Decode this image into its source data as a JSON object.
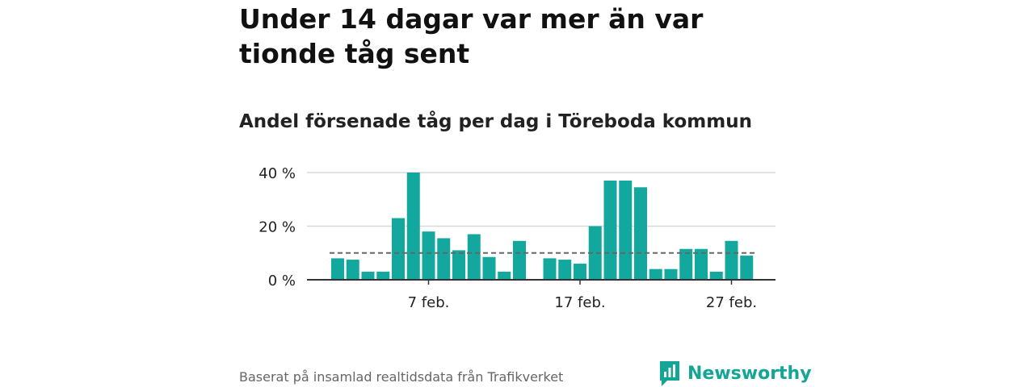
{
  "title": "Under 14 dagar var mer än var tionde tåg sent",
  "subtitle": "Andel försenade tåg per dag i Töreboda kommun",
  "source": "Baserat på insamlad realtidsdata från Trafikverket",
  "brand": {
    "name": "Newsworthy",
    "icon": "newsworthy-logo-icon",
    "color": "#13a596"
  },
  "colors": {
    "bar": "#13a89e",
    "grid": "#d9d9d9",
    "axis": "#333333",
    "reference": "#666666"
  },
  "chart_data": {
    "type": "bar",
    "x_type": "date",
    "x": [
      "2024-02-01",
      "2024-02-02",
      "2024-02-03",
      "2024-02-04",
      "2024-02-05",
      "2024-02-06",
      "2024-02-07",
      "2024-02-08",
      "2024-02-09",
      "2024-02-10",
      "2024-02-11",
      "2024-02-12",
      "2024-02-13",
      "2024-02-14",
      "2024-02-15",
      "2024-02-16",
      "2024-02-17",
      "2024-02-18",
      "2024-02-19",
      "2024-02-20",
      "2024-02-21",
      "2024-02-22",
      "2024-02-23",
      "2024-02-24",
      "2024-02-25",
      "2024-02-26",
      "2024-02-27",
      "2024-02-28",
      "2024-02-29"
    ],
    "values": [
      8,
      7.5,
      3,
      3,
      23,
      40,
      18,
      15.5,
      11,
      17,
      8.5,
      3,
      14.5,
      null,
      8,
      7.5,
      6,
      20,
      37,
      37,
      34.5,
      4,
      4,
      11.5,
      11.5,
      3,
      14.5,
      9,
      null
    ],
    "ylim": [
      0,
      40
    ],
    "yticks": [
      0,
      20,
      40
    ],
    "ytick_labels": [
      "0 %",
      "20 %",
      "40 %"
    ],
    "xticks": [
      "2024-02-07",
      "2024-02-17",
      "2024-02-27"
    ],
    "xtick_labels": [
      "7 feb.",
      "17 feb.",
      "27 feb."
    ],
    "reference_line": 10,
    "grid": true,
    "xlabel": "",
    "ylabel": ""
  }
}
